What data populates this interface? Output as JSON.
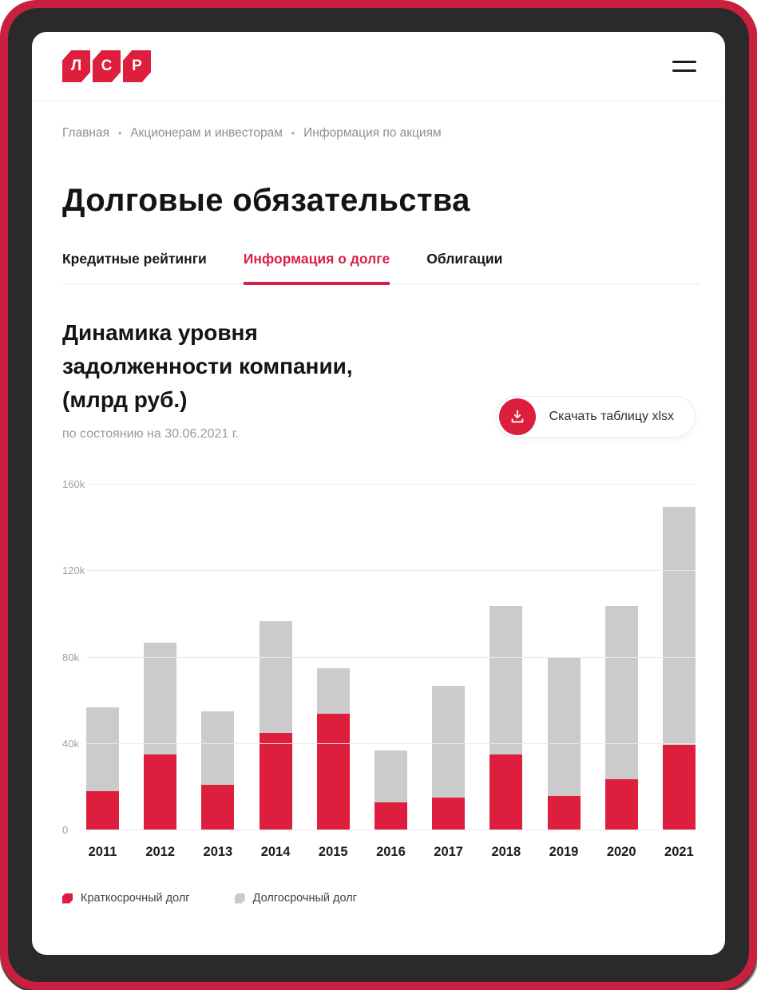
{
  "frame": {
    "outer_red": "#c9203f",
    "bezel_dark": "#2a292b"
  },
  "accent_red": "#dd1e3c",
  "header": {
    "logo_letters": [
      "Л",
      "С",
      "Р"
    ],
    "menu_icon": "hamburger-icon"
  },
  "breadcrumb": {
    "separator": "•",
    "items": [
      "Главная",
      "Акционерам и инвесторам",
      "Информация по акциям"
    ]
  },
  "page": {
    "title": "Долговые обязательства"
  },
  "tabs": [
    {
      "name": "tab-credit-ratings",
      "label": "Кредитные рейтинги",
      "active": false
    },
    {
      "name": "tab-debt-info",
      "label": "Информация о долге",
      "active": true
    },
    {
      "name": "tab-bonds",
      "label": "Облигации",
      "active": false
    }
  ],
  "section": {
    "heading_lines": [
      "Динамика уровня",
      "задолженности компании,",
      "(млрд руб.)"
    ],
    "as_of": "по состоянию на 30.06.2021 г.",
    "download_label": "Скачать таблицу xlsx"
  },
  "chart_data": {
    "type": "bar",
    "stacked": true,
    "title": "Динамика уровня задолженности компании, (млрд руб.)",
    "subtitle": "по состоянию на 30.06.2021 г.",
    "categories": [
      "2011",
      "2012",
      "2013",
      "2014",
      "2015",
      "2016",
      "2017",
      "2018",
      "2019",
      "2020",
      "2021"
    ],
    "series": [
      {
        "key": "short-term-debt",
        "name": "Краткосрочный долг",
        "color": "#dd1e3c",
        "values": [
          18,
          35,
          21,
          45,
          54,
          13,
          15,
          35,
          16,
          23.5,
          39.5
        ]
      },
      {
        "key": "long-term-debt",
        "name": "Долгосрочный долг",
        "color": "#cbcbcb",
        "values": [
          39,
          52,
          34,
          52,
          21,
          24,
          52,
          69,
          64,
          80.5,
          110
        ]
      }
    ],
    "value_unit": "k",
    "ylim": [
      0,
      160
    ],
    "yticks": [
      0,
      40,
      80,
      120,
      160
    ],
    "ytick_labels": [
      "0",
      "40k",
      "80k",
      "120k",
      "160k"
    ],
    "grid": "horizontal",
    "legend_position": "bottom"
  }
}
